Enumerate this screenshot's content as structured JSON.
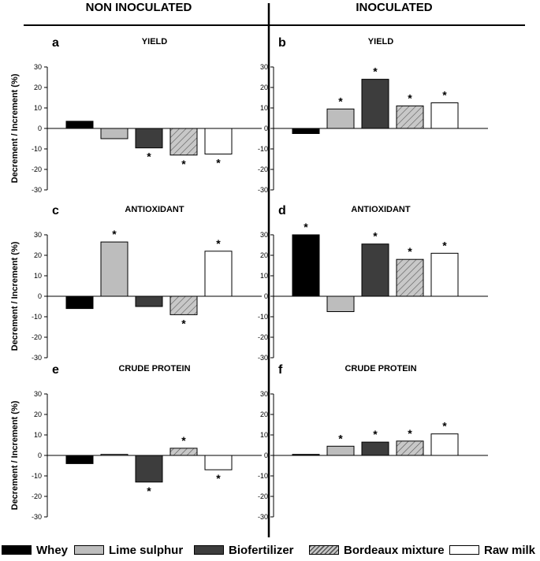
{
  "headers": {
    "left": "NON INOCULATED",
    "right": "INOCULATED"
  },
  "ylabel": "Decrement / Increment (%)",
  "yticks": [
    "30",
    "20",
    "10",
    "0",
    "-10",
    "-20",
    "-30"
  ],
  "legend": [
    {
      "name": "Whey",
      "color": "#000000",
      "pattern": "solid"
    },
    {
      "name": "Lime sulphur",
      "color": "#bdbdbd",
      "pattern": "solid"
    },
    {
      "name": "Biofertilizer",
      "color": "#3d3d3d",
      "pattern": "solid"
    },
    {
      "name": "Bordeaux mixture",
      "color": "#c8c8c8",
      "pattern": "hatch"
    },
    {
      "name": "Raw milk",
      "color": "#ffffff",
      "pattern": "solid"
    }
  ],
  "chart_data": [
    {
      "type": "bar",
      "letter": "a",
      "title": "YIELD",
      "group": "NON INOCULATED",
      "ylim": [
        -30,
        30
      ],
      "categories": [
        "Whey",
        "Lime sulphur",
        "Biofertilizer",
        "Bordeaux mixture",
        "Raw milk"
      ],
      "values": [
        3.5,
        -5,
        -9.5,
        -13,
        -12.5
      ],
      "significant": [
        false,
        false,
        true,
        true,
        true
      ]
    },
    {
      "type": "bar",
      "letter": "b",
      "title": "YIELD",
      "group": "INOCULATED",
      "ylim": [
        -30,
        30
      ],
      "categories": [
        "Whey",
        "Lime sulphur",
        "Biofertilizer",
        "Bordeaux mixture",
        "Raw milk"
      ],
      "values": [
        -2.5,
        9.5,
        24,
        11,
        12.5
      ],
      "significant": [
        false,
        true,
        true,
        true,
        true
      ]
    },
    {
      "type": "bar",
      "letter": "c",
      "title": "ANTIOXIDANT",
      "group": "NON INOCULATED",
      "ylim": [
        -30,
        30
      ],
      "categories": [
        "Whey",
        "Lime sulphur",
        "Biofertilizer",
        "Bordeaux mixture",
        "Raw milk"
      ],
      "values": [
        -6,
        26.5,
        -5,
        -9,
        22
      ],
      "significant": [
        false,
        true,
        false,
        true,
        true
      ]
    },
    {
      "type": "bar",
      "letter": "d",
      "title": "ANTIOXIDANT",
      "group": "INOCULATED",
      "ylim": [
        -30,
        30
      ],
      "categories": [
        "Whey",
        "Lime sulphur",
        "Biofertilizer",
        "Bordeaux mixture",
        "Raw milk"
      ],
      "values": [
        30,
        -7.5,
        25.5,
        18,
        21
      ],
      "significant": [
        true,
        false,
        true,
        true,
        true
      ]
    },
    {
      "type": "bar",
      "letter": "e",
      "title": "CRUDE PROTEIN",
      "group": "NON INOCULATED",
      "ylim": [
        -30,
        30
      ],
      "categories": [
        "Whey",
        "Lime sulphur",
        "Biofertilizer",
        "Bordeaux mixture",
        "Raw milk"
      ],
      "values": [
        -4,
        0.5,
        -13,
        3.5,
        -7
      ],
      "significant": [
        false,
        false,
        true,
        true,
        true
      ]
    },
    {
      "type": "bar",
      "letter": "f",
      "title": "CRUDE PROTEIN",
      "group": "INOCULATED",
      "ylim": [
        -30,
        30
      ],
      "categories": [
        "Whey",
        "Lime sulphur",
        "Biofertilizer",
        "Bordeaux mixture",
        "Raw milk"
      ],
      "values": [
        0.5,
        4.5,
        6.5,
        7,
        10.5
      ],
      "significant": [
        false,
        true,
        true,
        true,
        true
      ]
    }
  ]
}
